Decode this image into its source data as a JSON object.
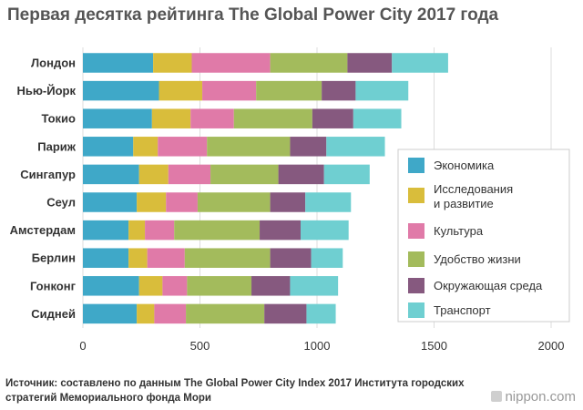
{
  "title": "Первая десятка рейтинга The Global Power City 2017 года",
  "source": "Источник: составлено по данным The Global Power City Index 2017 Института городских стратегий Мемориального фонда Мори",
  "brand": "nippon.com",
  "colors": {
    "economy": "#3fa8c8",
    "research": "#d9bd3b",
    "culture": "#e07aa8",
    "livability": "#a3bb5c",
    "environment": "#86597f",
    "transport": "#6fcfd1",
    "grid": "#dddddd",
    "legend_border": "#cccccc"
  },
  "chart_data": {
    "type": "bar",
    "orientation": "horizontal",
    "stacked": true,
    "title": "Первая десятка рейтинга The Global Power City 2017 года",
    "xlabel": "",
    "ylabel": "",
    "xlim": [
      0,
      2000
    ],
    "xticks": [
      0,
      500,
      1000,
      1500,
      2000
    ],
    "grid": true,
    "legend_position": "right",
    "categories": [
      "Лондон",
      "Нью-Йорк",
      "Токио",
      "Париж",
      "Сингапур",
      "Сеул",
      "Амстердам",
      "Берлин",
      "Гонконг",
      "Сидней"
    ],
    "series": [
      {
        "name": "Экономика",
        "color_key": "economy",
        "values": [
          300,
          325,
          295,
          215,
          240,
          230,
          195,
          195,
          240,
          230
        ]
      },
      {
        "name": "Исследования и развитие",
        "color_key": "research",
        "values": [
          165,
          185,
          165,
          105,
          125,
          125,
          70,
          80,
          100,
          75
        ]
      },
      {
        "name": "Культура",
        "color_key": "culture",
        "values": [
          335,
          230,
          185,
          210,
          180,
          135,
          125,
          160,
          105,
          135
        ]
      },
      {
        "name": "Удобство жизни",
        "color_key": "livability",
        "values": [
          330,
          280,
          335,
          355,
          290,
          310,
          365,
          365,
          275,
          335
        ]
      },
      {
        "name": "Окружающая среда",
        "color_key": "environment",
        "values": [
          190,
          145,
          175,
          155,
          195,
          150,
          175,
          175,
          165,
          180
        ]
      },
      {
        "name": "Транспорт",
        "color_key": "transport",
        "values": [
          240,
          225,
          205,
          250,
          195,
          195,
          205,
          135,
          205,
          125
        ]
      }
    ]
  }
}
